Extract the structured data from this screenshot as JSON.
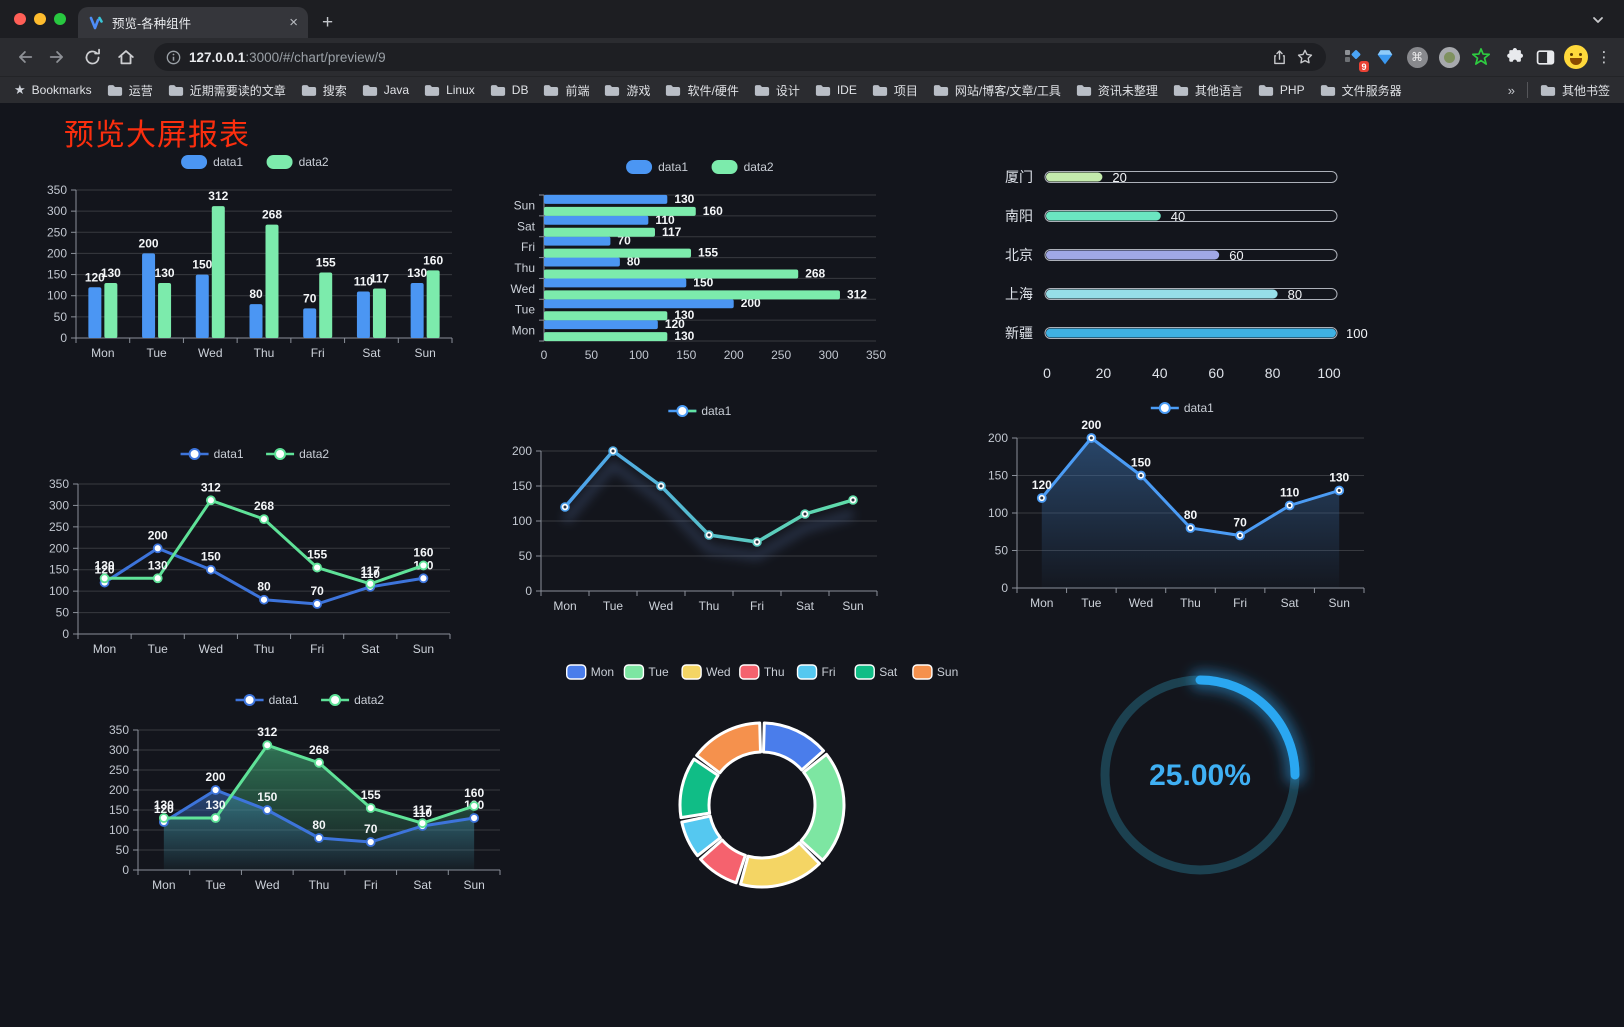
{
  "browser": {
    "tab": {
      "title": "预览-各种组件"
    },
    "url": {
      "host": "127.0.0.1",
      "rest": ":3000/#/chart/preview/9"
    },
    "icons": {
      "close": "×",
      "new_tab": "+",
      "dots": "⋮",
      "overflow": "»",
      "command": "⌘",
      "extension_badge": "9"
    },
    "bookmarks": {
      "label": "Bookmarks",
      "items": [
        "运营",
        "近期需要读的文章",
        "搜索",
        "Java",
        "Linux",
        "DB",
        "前端",
        "游戏",
        "软件/硬件",
        "设计",
        "IDE",
        "项目",
        "网站/博客/文章/工具",
        "资讯未整理",
        "其他语言",
        "PHP",
        "文件服务器"
      ],
      "other_label": "其他书签"
    }
  },
  "page": {
    "title": "预览大屏报表",
    "title_color": "#fb2e0e"
  },
  "chart_data": [
    {
      "id": "bar-chart",
      "type": "bar",
      "categories": [
        "Mon",
        "Tue",
        "Wed",
        "Thu",
        "Fri",
        "Sat",
        "Sun"
      ],
      "series": [
        {
          "name": "data1",
          "color": "#4b96f3",
          "values": [
            120,
            200,
            150,
            80,
            70,
            110,
            130
          ]
        },
        {
          "name": "data2",
          "color": "#7cebac",
          "values": [
            130,
            130,
            312,
            268,
            155,
            117,
            160
          ]
        }
      ],
      "ylim": [
        0,
        350
      ],
      "ystep": 50,
      "legend_position": "top",
      "grid": true,
      "value_labels": true
    },
    {
      "id": "horizontal-bar-chart",
      "type": "bar-horizontal",
      "categories": [
        "Mon",
        "Tue",
        "Wed",
        "Thu",
        "Fri",
        "Sat",
        "Sun"
      ],
      "series": [
        {
          "name": "data1",
          "color": "#4b96f3",
          "values": [
            120,
            200,
            150,
            80,
            70,
            110,
            130
          ]
        },
        {
          "name": "data2",
          "color": "#7cebac",
          "values": [
            130,
            130,
            312,
            268,
            155,
            117,
            160
          ]
        }
      ],
      "xlim": [
        0,
        350
      ],
      "xstep": 50,
      "legend_position": "top",
      "value_labels": true
    },
    {
      "id": "progress-bar-chart",
      "type": "progress",
      "rows": [
        {
          "label": "厦门",
          "value": 20,
          "color": "#c4ebad"
        },
        {
          "label": "南阳",
          "value": 40,
          "color": "#6be6c1"
        },
        {
          "label": "北京",
          "value": 60,
          "color": "#a0a7e6"
        },
        {
          "label": "上海",
          "value": 80,
          "color": "#96dee8"
        },
        {
          "label": "新疆",
          "value": 100,
          "color": "#3fb1e3"
        }
      ],
      "xlim": [
        0,
        100
      ],
      "xticks": [
        0,
        20,
        40,
        60,
        80,
        100
      ]
    },
    {
      "id": "line-chart",
      "type": "line",
      "categories": [
        "Mon",
        "Tue",
        "Wed",
        "Thu",
        "Fri",
        "Sat",
        "Sun"
      ],
      "series": [
        {
          "name": "data1",
          "color": "#3d74db",
          "values": [
            120,
            200,
            150,
            80,
            70,
            110,
            130
          ]
        },
        {
          "name": "data2",
          "color": "#5fe298",
          "values": [
            130,
            130,
            312,
            268,
            155,
            117,
            160
          ]
        }
      ],
      "ylim": [
        0,
        350
      ],
      "ystep": 50,
      "value_labels": true
    },
    {
      "id": "gradient-line-chart",
      "type": "line-gradient",
      "categories": [
        "Mon",
        "Tue",
        "Wed",
        "Thu",
        "Fri",
        "Sat",
        "Sun"
      ],
      "series": [
        {
          "name": "data1",
          "colors": [
            "#4b9cf5",
            "#62e3a2"
          ],
          "values": [
            120,
            200,
            150,
            80,
            70,
            110,
            130
          ]
        }
      ],
      "ylim": [
        0,
        200
      ],
      "ystep": 50,
      "shadow": true,
      "value_labels": false
    },
    {
      "id": "area-chart",
      "type": "area",
      "categories": [
        "Mon",
        "Tue",
        "Wed",
        "Thu",
        "Fri",
        "Sat",
        "Sun"
      ],
      "series": [
        {
          "name": "data1",
          "color": "#4b9cf5",
          "area_color": "#3a6ea8",
          "values": [
            120,
            200,
            150,
            80,
            70,
            110,
            130
          ]
        }
      ],
      "ylim": [
        0,
        200
      ],
      "ystep": 50,
      "value_labels": true
    },
    {
      "id": "dual-area-chart",
      "type": "area-dual",
      "categories": [
        "Mon",
        "Tue",
        "Wed",
        "Thu",
        "Fri",
        "Sat",
        "Sun"
      ],
      "series": [
        {
          "name": "data1",
          "color": "#3d74db",
          "area_color": "#3a6ec0",
          "values": [
            120,
            200,
            150,
            80,
            70,
            110,
            130
          ]
        },
        {
          "name": "data2",
          "color": "#5fe298",
          "area_color": "#46be82",
          "values": [
            130,
            130,
            312,
            268,
            155,
            117,
            160
          ]
        }
      ],
      "ylim": [
        0,
        350
      ],
      "ystep": 50,
      "value_labels": true
    },
    {
      "id": "donut-chart",
      "type": "donut",
      "categories": [
        "Mon",
        "Tue",
        "Wed",
        "Thu",
        "Fri",
        "Sat",
        "Sun"
      ],
      "values": [
        120,
        200,
        150,
        80,
        70,
        110,
        130
      ],
      "colors": [
        "#4a7deb",
        "#7de6a2",
        "#f4d564",
        "#f5626e",
        "#55c8f0",
        "#10bd86",
        "#f5914d"
      ],
      "legend_position": "top"
    },
    {
      "id": "gauge-chart",
      "type": "gauge",
      "value": 25,
      "label": "25.00%",
      "color": "#2aa7f1",
      "track_color": "#1c4150"
    }
  ]
}
